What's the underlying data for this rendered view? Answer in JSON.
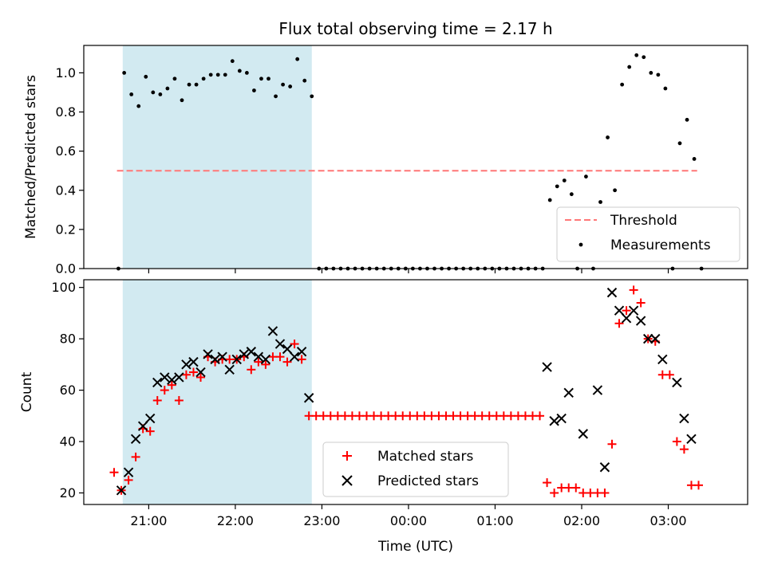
{
  "chart_data": [
    {
      "type": "scatter",
      "title": "Flux total observing time = 2.17 h",
      "xlabel": "",
      "ylabel": "Matched/Predicted stars",
      "ylim": [
        0.0,
        1.14
      ],
      "yticks": [
        "0.0",
        "0.2",
        "0.4",
        "0.6",
        "0.8",
        "1.0"
      ],
      "ytick_values": [
        0.0,
        0.2,
        0.4,
        0.6,
        0.8,
        1.0
      ],
      "xlim": [
        "20:15",
        "03:55"
      ],
      "highlight_span": [
        "20:42",
        "22:53"
      ],
      "highlight_color": "#add8e6",
      "threshold": {
        "name": "Threshold",
        "value": 0.5,
        "x_start": "20:38",
        "x_end": "03:20",
        "color": "#ff7777"
      },
      "series": [
        {
          "name": "Measurements",
          "color": "#000000",
          "marker": "dot",
          "points": [
            [
              "20:39",
              0.0
            ],
            [
              "20:43",
              1.0
            ],
            [
              "20:48",
              0.89
            ],
            [
              "20:53",
              0.83
            ],
            [
              "20:58",
              0.98
            ],
            [
              "21:03",
              0.9
            ],
            [
              "21:08",
              0.89
            ],
            [
              "21:13",
              0.92
            ],
            [
              "21:18",
              0.97
            ],
            [
              "21:23",
              0.86
            ],
            [
              "21:28",
              0.94
            ],
            [
              "21:33",
              0.94
            ],
            [
              "21:38",
              0.97
            ],
            [
              "21:43",
              0.99
            ],
            [
              "21:48",
              0.99
            ],
            [
              "21:53",
              0.99
            ],
            [
              "21:58",
              1.06
            ],
            [
              "22:03",
              1.01
            ],
            [
              "22:08",
              1.0
            ],
            [
              "22:13",
              0.91
            ],
            [
              "22:18",
              0.97
            ],
            [
              "22:23",
              0.97
            ],
            [
              "22:28",
              0.88
            ],
            [
              "22:33",
              0.94
            ],
            [
              "22:38",
              0.93
            ],
            [
              "22:43",
              1.07
            ],
            [
              "22:48",
              0.96
            ],
            [
              "22:53",
              0.88
            ],
            [
              "22:58",
              0.0
            ],
            [
              "23:03",
              0.0
            ],
            [
              "23:08",
              0.0
            ],
            [
              "23:13",
              0.0
            ],
            [
              "23:18",
              0.0
            ],
            [
              "23:23",
              0.0
            ],
            [
              "23:28",
              0.0
            ],
            [
              "23:33",
              0.0
            ],
            [
              "23:38",
              0.0
            ],
            [
              "23:43",
              0.0
            ],
            [
              "23:48",
              0.0
            ],
            [
              "23:53",
              0.0
            ],
            [
              "23:58",
              0.0
            ],
            [
              "00:03",
              0.0
            ],
            [
              "00:08",
              0.0
            ],
            [
              "00:13",
              0.0
            ],
            [
              "00:18",
              0.0
            ],
            [
              "00:23",
              0.0
            ],
            [
              "00:28",
              0.0
            ],
            [
              "00:33",
              0.0
            ],
            [
              "00:38",
              0.0
            ],
            [
              "00:43",
              0.0
            ],
            [
              "00:48",
              0.0
            ],
            [
              "00:53",
              0.0
            ],
            [
              "00:58",
              0.0
            ],
            [
              "01:03",
              0.0
            ],
            [
              "01:08",
              0.0
            ],
            [
              "01:13",
              0.0
            ],
            [
              "01:18",
              0.0
            ],
            [
              "01:23",
              0.0
            ],
            [
              "01:28",
              0.0
            ],
            [
              "01:33",
              0.0
            ],
            [
              "01:38",
              0.35
            ],
            [
              "01:43",
              0.42
            ],
            [
              "01:48",
              0.45
            ],
            [
              "01:53",
              0.38
            ],
            [
              "01:57",
              0.0
            ],
            [
              "02:03",
              0.47
            ],
            [
              "02:08",
              0.0
            ],
            [
              "02:13",
              0.34
            ],
            [
              "02:18",
              0.67
            ],
            [
              "02:23",
              0.4
            ],
            [
              "02:28",
              0.94
            ],
            [
              "02:33",
              1.03
            ],
            [
              "02:38",
              1.09
            ],
            [
              "02:43",
              1.08
            ],
            [
              "02:48",
              1.0
            ],
            [
              "02:53",
              0.99
            ],
            [
              "02:58",
              0.92
            ],
            [
              "03:03",
              0.0
            ],
            [
              "03:08",
              0.64
            ],
            [
              "03:13",
              0.76
            ],
            [
              "03:18",
              0.56
            ],
            [
              "03:23",
              0.0
            ]
          ]
        }
      ],
      "legend_position": "lower right"
    },
    {
      "type": "scatter",
      "title": "",
      "xlabel": "Time (UTC)",
      "ylabel": "Count",
      "ylim": [
        15.5,
        103
      ],
      "yticks": [
        "20",
        "40",
        "60",
        "80",
        "100"
      ],
      "ytick_values": [
        20,
        40,
        60,
        80,
        100
      ],
      "xlim": [
        "20:15",
        "03:55"
      ],
      "xticks": [
        "21:00",
        "22:00",
        "23:00",
        "00:00",
        "01:00",
        "02:00",
        "03:00"
      ],
      "highlight_span": [
        "20:42",
        "22:53"
      ],
      "highlight_color": "#add8e6",
      "series": [
        {
          "name": "Matched stars",
          "color": "#ff0000",
          "marker": "plus",
          "points": [
            [
              "20:36",
              28
            ],
            [
              "20:41",
              21
            ],
            [
              "20:46",
              25
            ],
            [
              "20:51",
              34
            ],
            [
              "20:56",
              45
            ],
            [
              "21:01",
              44
            ],
            [
              "21:06",
              56
            ],
            [
              "21:11",
              60
            ],
            [
              "21:16",
              62
            ],
            [
              "21:21",
              56
            ],
            [
              "21:26",
              66
            ],
            [
              "21:31",
              67
            ],
            [
              "21:36",
              65
            ],
            [
              "21:41",
              73
            ],
            [
              "21:46",
              71
            ],
            [
              "21:51",
              72
            ],
            [
              "21:56",
              72
            ],
            [
              "22:01",
              72
            ],
            [
              "22:06",
              73
            ],
            [
              "22:11",
              68
            ],
            [
              "22:16",
              71
            ],
            [
              "22:21",
              70
            ],
            [
              "22:26",
              73
            ],
            [
              "22:31",
              73
            ],
            [
              "22:36",
              71
            ],
            [
              "22:41",
              78
            ],
            [
              "22:46",
              72
            ],
            [
              "22:51",
              50
            ],
            [
              "22:56",
              50
            ],
            [
              "23:01",
              50
            ],
            [
              "23:06",
              50
            ],
            [
              "23:11",
              50
            ],
            [
              "23:16",
              50
            ],
            [
              "23:21",
              50
            ],
            [
              "23:26",
              50
            ],
            [
              "23:31",
              50
            ],
            [
              "23:36",
              50
            ],
            [
              "23:41",
              50
            ],
            [
              "23:46",
              50
            ],
            [
              "23:51",
              50
            ],
            [
              "23:56",
              50
            ],
            [
              "00:01",
              50
            ],
            [
              "00:06",
              50
            ],
            [
              "00:11",
              50
            ],
            [
              "00:16",
              50
            ],
            [
              "00:21",
              50
            ],
            [
              "00:26",
              50
            ],
            [
              "00:31",
              50
            ],
            [
              "00:36",
              50
            ],
            [
              "00:41",
              50
            ],
            [
              "00:46",
              50
            ],
            [
              "00:51",
              50
            ],
            [
              "00:56",
              50
            ],
            [
              "01:01",
              50
            ],
            [
              "01:06",
              50
            ],
            [
              "01:11",
              50
            ],
            [
              "01:16",
              50
            ],
            [
              "01:21",
              50
            ],
            [
              "01:26",
              50
            ],
            [
              "01:31",
              50
            ],
            [
              "01:36",
              24
            ],
            [
              "01:41",
              20
            ],
            [
              "01:46",
              22
            ],
            [
              "01:51",
              22
            ],
            [
              "01:56",
              22
            ],
            [
              "02:01",
              20
            ],
            [
              "02:06",
              20
            ],
            [
              "02:11",
              20
            ],
            [
              "02:16",
              20
            ],
            [
              "02:21",
              39
            ],
            [
              "02:26",
              86
            ],
            [
              "02:31",
              91
            ],
            [
              "02:36",
              99
            ],
            [
              "02:41",
              94
            ],
            [
              "02:46",
              80
            ],
            [
              "02:51",
              79
            ],
            [
              "02:56",
              66
            ],
            [
              "03:01",
              66
            ],
            [
              "03:06",
              40
            ],
            [
              "03:11",
              37
            ],
            [
              "03:16",
              23
            ],
            [
              "03:21",
              23
            ]
          ]
        },
        {
          "name": "Predicted stars",
          "color": "#000000",
          "marker": "x",
          "points": [
            [
              "20:41",
              21
            ],
            [
              "20:46",
              28
            ],
            [
              "20:51",
              41
            ],
            [
              "20:56",
              46
            ],
            [
              "21:01",
              49
            ],
            [
              "21:06",
              63
            ],
            [
              "21:11",
              65
            ],
            [
              "21:16",
              64
            ],
            [
              "21:21",
              65
            ],
            [
              "21:26",
              70
            ],
            [
              "21:31",
              71
            ],
            [
              "21:36",
              67
            ],
            [
              "21:41",
              74
            ],
            [
              "21:46",
              72
            ],
            [
              "21:51",
              73
            ],
            [
              "21:56",
              68
            ],
            [
              "22:01",
              72
            ],
            [
              "22:06",
              74
            ],
            [
              "22:11",
              75
            ],
            [
              "22:16",
              73
            ],
            [
              "22:21",
              72
            ],
            [
              "22:26",
              83
            ],
            [
              "22:31",
              78
            ],
            [
              "22:36",
              76
            ],
            [
              "22:41",
              73
            ],
            [
              "22:46",
              75
            ],
            [
              "22:51",
              57
            ],
            [
              "01:36",
              69
            ],
            [
              "01:41",
              48
            ],
            [
              "01:46",
              49
            ],
            [
              "01:51",
              59
            ],
            [
              "02:01",
              43
            ],
            [
              "02:11",
              60
            ],
            [
              "02:16",
              30
            ],
            [
              "02:21",
              98
            ],
            [
              "02:26",
              91
            ],
            [
              "02:31",
              88
            ],
            [
              "02:36",
              91
            ],
            [
              "02:41",
              87
            ],
            [
              "02:46",
              80
            ],
            [
              "02:51",
              80
            ],
            [
              "02:56",
              72
            ],
            [
              "03:06",
              63
            ],
            [
              "03:11",
              49
            ],
            [
              "03:16",
              41
            ]
          ]
        }
      ],
      "legend_position": "lower center"
    }
  ]
}
